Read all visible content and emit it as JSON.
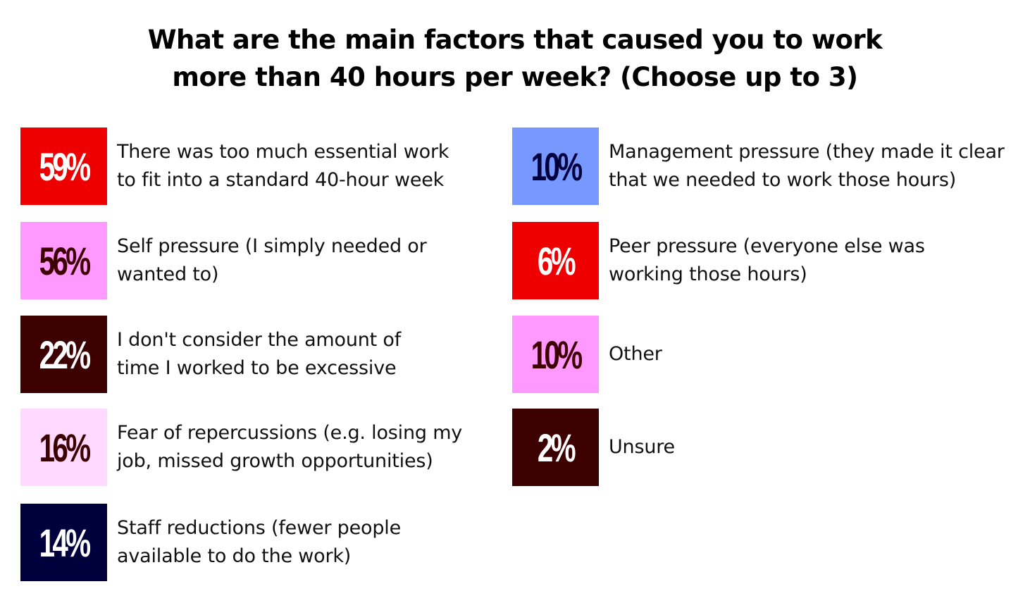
{
  "chart_data": {
    "type": "table",
    "title": "What are the main factors that caused you to work more than 40 hours per week? (Choose up to 3)",
    "title_lines": [
      "What are the main factors that caused you to work",
      "more than 40 hours per week? (Choose up to 3)"
    ],
    "items": [
      {
        "value": 59,
        "value_label": "59%",
        "label": "There was too much essential work to fit into a standard 40-hour week",
        "label_lines": [
          "There was too much essential work",
          "to fit into a standard 40-hour week"
        ],
        "badge_color": "#ee0000",
        "text_color": "#ffffff"
      },
      {
        "value": 56,
        "value_label": "56%",
        "label": "Self pressure (I simply needed or wanted to)",
        "label_lines": [
          "Self pressure (I simply needed or",
          "wanted to)"
        ],
        "badge_color": "#ff99ff",
        "text_color": "#3d0000"
      },
      {
        "value": 22,
        "value_label": "22%",
        "label": "I don't consider the amount of time I worked to be excessive",
        "label_lines": [
          "I don't consider the amount of",
          "time I worked to be excessive"
        ],
        "badge_color": "#3d0000",
        "text_color": "#ffffff"
      },
      {
        "value": 16,
        "value_label": "16%",
        "label": "Fear of repercussions (e.g. losing my job, missed growth opportunities)",
        "label_lines": [
          "Fear of repercussions (e.g. losing my",
          "job, missed growth opportunities)"
        ],
        "badge_color": "#ffd9ff",
        "text_color": "#3d0000"
      },
      {
        "value": 14,
        "value_label": "14%",
        "label": "Staff reductions (fewer people available to do the work)",
        "label_lines": [
          "Staff reductions (fewer people",
          "available to do the work)"
        ],
        "badge_color": "#00003d",
        "text_color": "#ffffff"
      },
      {
        "value": 10,
        "value_label": "10%",
        "label": "Management pressure (they made it clear that we needed to work those hours)",
        "label_lines": [
          "Management pressure (they made it clear",
          "that we needed to work those hours)"
        ],
        "badge_color": "#7799ff",
        "text_color": "#00003d"
      },
      {
        "value": 6,
        "value_label": "6%",
        "label": "Peer pressure (everyone else was working those hours)",
        "label_lines": [
          "Peer pressure (everyone else was",
          "working those hours)"
        ],
        "badge_color": "#ee0000",
        "text_color": "#ffffff"
      },
      {
        "value": 10,
        "value_label": "10%",
        "label": "Other",
        "label_lines": [
          "Other"
        ],
        "badge_color": "#ff99ff",
        "text_color": "#3d0000"
      },
      {
        "value": 2,
        "value_label": "2%",
        "label": "Unsure",
        "label_lines": [
          "Unsure"
        ],
        "badge_color": "#3d0000",
        "text_color": "#ffffff"
      }
    ]
  }
}
